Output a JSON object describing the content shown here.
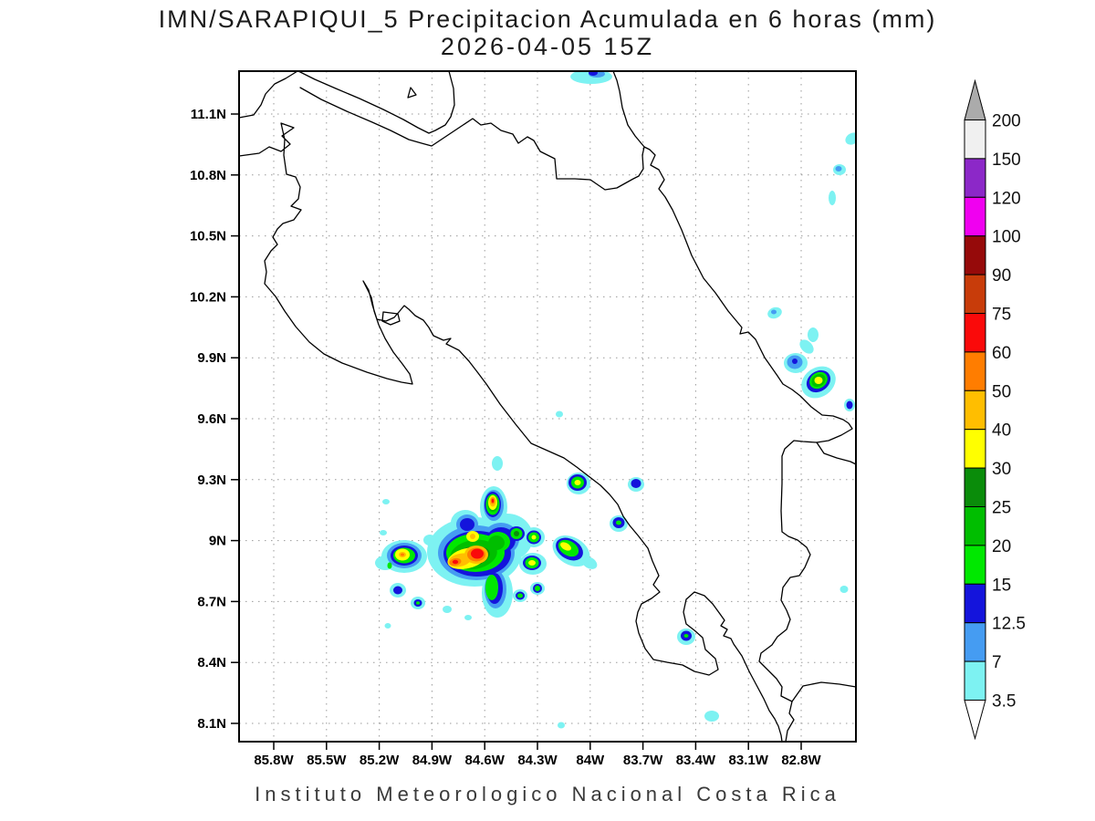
{
  "title": {
    "line1": "IMN/SARAPIQUI_5 Precipitacion Acumulada en 6 horas (mm)",
    "line2": "2026-04-05 15Z"
  },
  "footer": "Instituto Meteorologico Nacional Costa Rica",
  "axes": {
    "lat_ticks": [
      "11.1N",
      "10.8N",
      "10.5N",
      "10.2N",
      "9.9N",
      "9.6N",
      "9.3N",
      "9N",
      "8.7N",
      "8.4N",
      "8.1N"
    ],
    "lon_ticks": [
      "85.8W",
      "85.5W",
      "85.2W",
      "84.9W",
      "84.6W",
      "84.3W",
      "84W",
      "83.7W",
      "83.4W",
      "83.1W",
      "82.8W"
    ]
  },
  "colorbar": {
    "labels": [
      "200",
      "150",
      "120",
      "100",
      "90",
      "75",
      "60",
      "50",
      "40",
      "30",
      "25",
      "20",
      "15",
      "12.5",
      "7",
      "3.5"
    ],
    "colors": [
      "#F0F0F0",
      "#8C28C8",
      "#F000F0",
      "#960A0A",
      "#C83C0A",
      "#FA0A0A",
      "#FF7D00",
      "#FFBE00",
      "#FFFF00",
      "#0A8C0A",
      "#00BE00",
      "#00E800",
      "#1414DC",
      "#459CF2",
      "#7DF2F2"
    ],
    "above_color": "#ABABAB",
    "below_color": "#FFFFFF",
    "units": "mm"
  },
  "palette": {
    "c": "#7DF2F2",
    "s": "#459CF2",
    "b": "#1414DC",
    "g3": "#00E800",
    "g2": "#00BE00",
    "g1": "#0A8C0A",
    "y": "#FFFF00",
    "gd": "#FFBE00",
    "o": "#FF7D00",
    "r": "#FA0A0A"
  },
  "precip_blobs": [
    [
      "c",
      520,
      605,
      52,
      38,
      0
    ],
    [
      "c",
      556,
      589,
      28,
      26,
      0
    ],
    [
      "c",
      545,
      650,
      17,
      27,
      0
    ],
    [
      "c",
      541,
      556,
      15,
      23,
      0
    ],
    [
      "c",
      443,
      610,
      25,
      18,
      0
    ],
    [
      "c",
      422,
      617,
      11,
      8,
      0
    ],
    [
      "c",
      510,
      573,
      16,
      14,
      0
    ],
    [
      "c",
      567,
      584,
      13,
      12,
      0
    ],
    [
      "c",
      585,
      589,
      12,
      11,
      0
    ],
    [
      "c",
      584,
      618,
      15,
      12,
      0
    ],
    [
      "c",
      570,
      653,
      8,
      7,
      0
    ],
    [
      "c",
      589,
      645,
      8,
      7,
      0
    ],
    [
      "c",
      436,
      647,
      9,
      8,
      0
    ],
    [
      "c",
      458,
      661,
      8,
      7,
      0
    ],
    [
      "c",
      490,
      668,
      5,
      4,
      0
    ],
    [
      "c",
      513,
      677,
      4,
      3,
      0
    ],
    [
      "c",
      425,
      686,
      3.5,
      3,
      0
    ],
    [
      "c",
      423,
      550,
      4,
      3,
      0
    ],
    [
      "c",
      545,
      508,
      6,
      8,
      0
    ],
    [
      "c",
      420,
      584,
      4,
      3,
      0
    ],
    [
      "c",
      471,
      592,
      7,
      6,
      0
    ],
    [
      "c",
      634,
      530,
      13,
      12,
      0
    ],
    [
      "c",
      697,
      531,
      9,
      8,
      0
    ],
    [
      "c",
      678,
      574,
      10,
      9,
      0
    ],
    [
      "c",
      626,
      604,
      22,
      15,
      30
    ],
    [
      "c",
      646,
      617,
      9,
      6,
      30
    ],
    [
      "c",
      613,
      454,
      4,
      3.5,
      0
    ],
    [
      "c",
      752,
      698,
      10,
      9,
      0
    ],
    [
      "c",
      780,
      785,
      8,
      6,
      0
    ],
    [
      "c",
      925,
      646,
      4.5,
      4,
      0
    ],
    [
      "c",
      615,
      795,
      4,
      3.5,
      0
    ],
    [
      "c",
      897,
      419,
      20,
      16,
      -35
    ],
    [
      "c",
      884,
      380,
      9,
      6,
      45
    ],
    [
      "c",
      891,
      367,
      6,
      8,
      0
    ],
    [
      "c",
      849,
      343,
      8,
      6,
      -20
    ],
    [
      "c",
      931,
      444,
      6,
      7,
      0
    ],
    [
      "c",
      872,
      398,
      13,
      11,
      0
    ],
    [
      "c",
      648,
      84,
      23,
      8,
      0
    ],
    [
      "c",
      934,
      152,
      8,
      6,
      -30
    ],
    [
      "c",
      920,
      186,
      7,
      6,
      0
    ],
    [
      "c",
      912,
      217,
      4,
      8,
      0
    ],
    [
      "s",
      522,
      606,
      42,
      30,
      0
    ],
    [
      "s",
      549,
      591,
      20,
      18,
      0
    ],
    [
      "s",
      543,
      646,
      12,
      21,
      0
    ],
    [
      "s",
      541,
      554,
      11,
      17,
      0
    ],
    [
      "s",
      443,
      609,
      19,
      14,
      0
    ],
    [
      "s",
      512,
      575,
      12,
      11,
      0
    ],
    [
      "s",
      871,
      397,
      8.5,
      7.5,
      0
    ],
    [
      "s",
      848,
      342,
      3,
      2.5,
      0
    ],
    [
      "s",
      654,
      81,
      9,
      4,
      0
    ],
    [
      "s",
      919,
      185,
      3.5,
      3,
      0
    ],
    [
      "b",
      523,
      607,
      37,
      25,
      0
    ],
    [
      "b",
      549,
      592,
      16,
      14,
      0
    ],
    [
      "b",
      542,
      645,
      9,
      17,
      0
    ],
    [
      "b",
      540,
      553,
      9,
      14,
      0
    ],
    [
      "b",
      443,
      609,
      15,
      11,
      0
    ],
    [
      "b",
      512,
      575,
      8,
      7,
      0
    ],
    [
      "b",
      566,
      585,
      9,
      8,
      0
    ],
    [
      "b",
      585,
      589,
      8,
      7.5,
      0
    ],
    [
      "b",
      583,
      617,
      10,
      8,
      0
    ],
    [
      "b",
      570,
      653,
      5,
      4.5,
      0
    ],
    [
      "b",
      589,
      645,
      5,
      5,
      0
    ],
    [
      "b",
      436,
      647,
      5,
      4.5,
      0
    ],
    [
      "b",
      458,
      661,
      4.5,
      4,
      0
    ],
    [
      "b",
      633,
      529,
      10,
      9,
      0
    ],
    [
      "b",
      697,
      530,
      5.5,
      5,
      0
    ],
    [
      "b",
      678,
      573,
      6.5,
      6,
      0
    ],
    [
      "b",
      624,
      602,
      16,
      11,
      30
    ],
    [
      "b",
      752,
      697,
      6,
      5.5,
      0
    ],
    [
      "b",
      897,
      418,
      14,
      11,
      -35
    ],
    [
      "b",
      871,
      396,
      3,
      3,
      0
    ],
    [
      "b",
      650,
      80,
      5,
      3,
      0
    ],
    [
      "b",
      931,
      444,
      3.5,
      4.5,
      0
    ],
    [
      "g3",
      521,
      606,
      32,
      21,
      0
    ],
    [
      "g3",
      546,
      594,
      13,
      11,
      0
    ],
    [
      "g3",
      539,
      644,
      7,
      14,
      0
    ],
    [
      "g3",
      540,
      553,
      7.5,
      11.5,
      0
    ],
    [
      "g3",
      443,
      609,
      12,
      8.5,
      0
    ],
    [
      "g3",
      566,
      585,
      6.5,
      6,
      0
    ],
    [
      "g3",
      585,
      589,
      6,
      5.5,
      0
    ],
    [
      "g3",
      583,
      617,
      7.5,
      6,
      0
    ],
    [
      "g3",
      570,
      653,
      3,
      2.5,
      0
    ],
    [
      "g3",
      589,
      645,
      3,
      3,
      0
    ],
    [
      "g3",
      458,
      661,
      2,
      1.8,
      0
    ],
    [
      "g3",
      427,
      620,
      2.5,
      3.5,
      0
    ],
    [
      "g3",
      633,
      529,
      7,
      6.5,
      0
    ],
    [
      "g3",
      678,
      573,
      3,
      2.5,
      0
    ],
    [
      "g3",
      623,
      601,
      12,
      8,
      30
    ],
    [
      "g3",
      752,
      697,
      2.5,
      2,
      0
    ],
    [
      "g3",
      897,
      417,
      10.5,
      8.5,
      -35
    ],
    [
      "g2",
      519,
      608,
      26,
      16,
      -10
    ],
    [
      "g2",
      544,
      595,
      9,
      8,
      0
    ],
    [
      "g2",
      540,
      552,
      6,
      9,
      0
    ],
    [
      "g2",
      897,
      417,
      8,
      6.5,
      -35
    ],
    [
      "g1",
      517,
      610,
      20,
      11,
      -12
    ],
    [
      "g1",
      566,
      585,
      3,
      3,
      0
    ],
    [
      "y",
      512,
      612,
      22,
      11,
      -14
    ],
    [
      "y",
      518,
      588,
      7,
      6,
      0
    ],
    [
      "y",
      540,
      551,
      5,
      8,
      0
    ],
    [
      "y",
      441,
      608,
      8,
      6.5,
      0
    ],
    [
      "y",
      585,
      589,
      2.5,
      2.5,
      0
    ],
    [
      "y",
      583,
      617,
      4,
      3,
      0
    ],
    [
      "y",
      633,
      529,
      3.5,
      3,
      0
    ],
    [
      "y",
      620,
      599,
      6.5,
      3.8,
      30
    ],
    [
      "y",
      897,
      417,
      4.5,
      4,
      0
    ],
    [
      "gd",
      504,
      614,
      13,
      7,
      -14
    ],
    [
      "gd",
      522,
      608,
      13,
      10,
      0
    ],
    [
      "gd",
      518,
      588,
      3,
      3,
      0
    ],
    [
      "gd",
      540,
      550,
      3.5,
      5.5,
      0
    ],
    [
      "gd",
      441,
      608,
      4,
      3,
      0
    ],
    [
      "o",
      522,
      608,
      10,
      7.5,
      0
    ],
    [
      "o",
      499,
      616,
      6.5,
      4,
      -10
    ],
    [
      "o",
      540,
      549,
      2.2,
      3.5,
      0
    ],
    [
      "o",
      441,
      608,
      2,
      1.5,
      0
    ],
    [
      "r",
      523,
      607,
      7,
      5.5,
      0
    ],
    [
      "r",
      499,
      616,
      3.2,
      2.2,
      0
    ],
    [
      "r",
      540,
      549,
      1.2,
      2,
      0
    ]
  ],
  "chart_data": {
    "type": "contour-map",
    "title": "IMN/SARAPIQUI_5 Precipitacion Acumulada en 6 horas (mm)",
    "valid_time": "2026-04-05 15Z",
    "region": "Costa Rica",
    "units": "mm",
    "lon_range_w": [
      86.0,
      82.5
    ],
    "lat_range_n": [
      8.0,
      11.31
    ],
    "grid_interval_deg": 0.3,
    "levels": [
      3.5,
      7,
      12.5,
      15,
      20,
      25,
      30,
      40,
      50,
      60,
      75,
      90,
      100,
      120,
      150,
      200
    ],
    "cells": [
      {
        "lon_w": 84.65,
        "lat_n": 8.92,
        "max_mm": 60
      },
      {
        "lon_w": 84.55,
        "lat_n": 9.18,
        "max_mm": 60
      },
      {
        "lon_w": 85.07,
        "lat_n": 8.93,
        "max_mm": 50
      },
      {
        "lon_w": 84.33,
        "lat_n": 8.89,
        "max_mm": 30
      },
      {
        "lon_w": 84.32,
        "lat_n": 9.02,
        "max_mm": 30
      },
      {
        "lon_w": 84.12,
        "lat_n": 8.96,
        "max_mm": 30
      },
      {
        "lon_w": 84.07,
        "lat_n": 9.29,
        "max_mm": 30
      },
      {
        "lon_w": 83.84,
        "lat_n": 9.09,
        "max_mm": 15
      },
      {
        "lon_w": 83.74,
        "lat_n": 9.28,
        "max_mm": 12.5
      },
      {
        "lon_w": 82.7,
        "lat_n": 9.79,
        "max_mm": 30
      },
      {
        "lon_w": 82.83,
        "lat_n": 9.87,
        "max_mm": 12.5
      },
      {
        "lon_w": 83.45,
        "lat_n": 8.53,
        "max_mm": 15
      },
      {
        "lon_w": 83.31,
        "lat_n": 8.14,
        "max_mm": 3.5
      },
      {
        "lon_w": 84.0,
        "lat_n": 11.28,
        "max_mm": 12.5
      },
      {
        "lon_w": 82.51,
        "lat_n": 10.97,
        "max_mm": 7
      },
      {
        "lon_w": 82.58,
        "lat_n": 10.83,
        "max_mm": 7
      },
      {
        "lon_w": 82.62,
        "lat_n": 10.68,
        "max_mm": 3.5
      },
      {
        "lon_w": 82.56,
        "lat_n": 8.76,
        "max_mm": 12.5
      }
    ],
    "legend_position": "right"
  }
}
